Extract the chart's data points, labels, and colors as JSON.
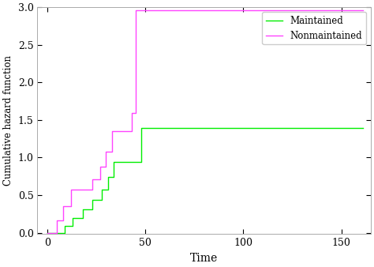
{
  "title": "",
  "xlabel": "Time",
  "ylabel": "Cumulative hazard function",
  "xlim": [
    -5,
    165
  ],
  "ylim": [
    -0.02,
    3.0
  ],
  "yticks": [
    0.0,
    0.5,
    1.0,
    1.5,
    2.0,
    2.5,
    3.0
  ],
  "xticks": [
    0,
    50,
    100,
    150
  ],
  "maintained_color": "#00ee00",
  "nonmaintained_color": "#ff44ff",
  "legend_labels": [
    "Maintained",
    "Nonmaintained"
  ],
  "background_color": "#ffffff",
  "spine_color": "#aaaaaa",
  "maintained_step_x": [
    0,
    9,
    9,
    13,
    13,
    18,
    18,
    23,
    23,
    28,
    28,
    31,
    31,
    34,
    34,
    45,
    45,
    48,
    48,
    161
  ],
  "maintained_step_y": [
    0,
    0,
    0.0909,
    0.0909,
    0.1948,
    0.1948,
    0.3059,
    0.3059,
    0.4315,
    0.4315,
    0.5744,
    0.5744,
    0.741,
    0.741,
    0.941,
    0.941,
    0.941,
    0.941,
    1.391,
    1.391
  ],
  "nonmaintained_step_x": [
    0,
    5,
    5,
    8,
    8,
    12,
    12,
    23,
    23,
    27,
    27,
    30,
    30,
    33,
    33,
    43,
    43,
    45,
    45,
    161
  ],
  "nonmaintained_step_y": [
    0,
    0,
    0.1667,
    0.1667,
    0.3485,
    0.3485,
    0.5707,
    0.5707,
    0.7135,
    0.7135,
    0.8802,
    0.8802,
    1.0802,
    1.0802,
    1.3468,
    1.3468,
    1.5968,
    1.5968,
    2.9635,
    2.9635
  ]
}
